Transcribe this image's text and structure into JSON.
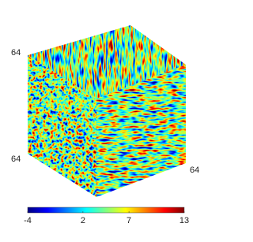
{
  "chart_data": {
    "type": "volume",
    "colormap": "jet",
    "axis_labels": [
      "64",
      "64",
      "64"
    ],
    "clim": [
      -4,
      13
    ],
    "cticks": [
      -4,
      2,
      7,
      13
    ]
  }
}
